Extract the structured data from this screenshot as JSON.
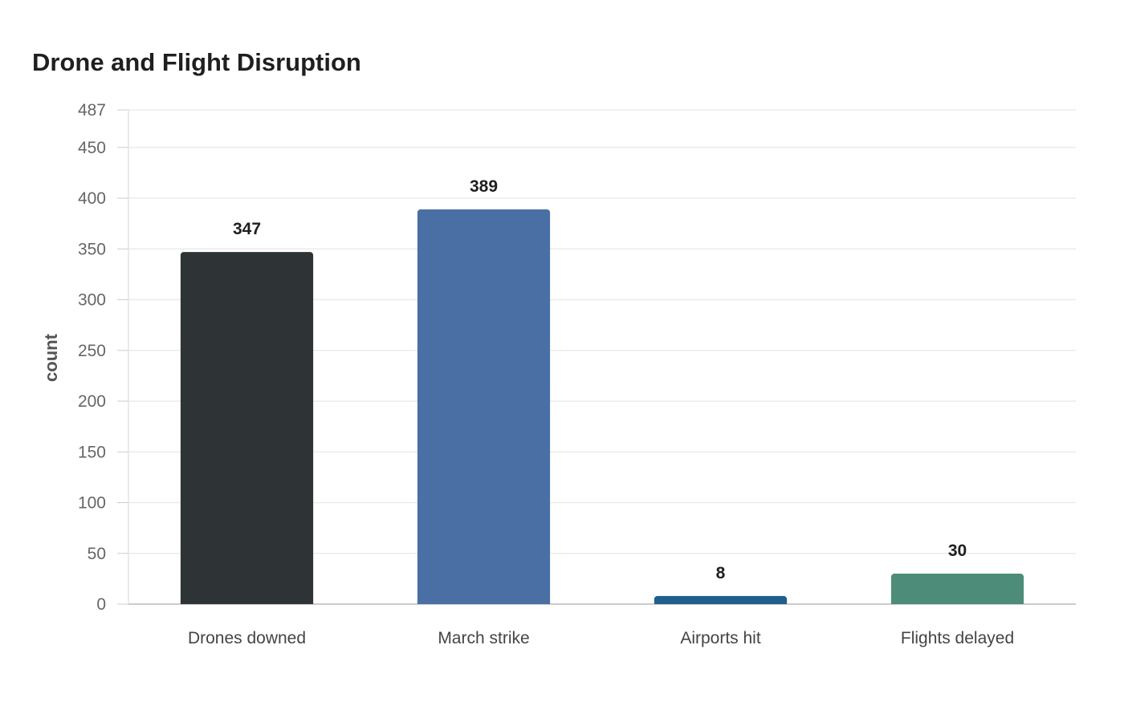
{
  "chart_data": {
    "type": "bar",
    "title": "Drone and Flight Disruption",
    "xlabel": "",
    "ylabel": "count",
    "categories": [
      "Drones downed",
      "March strike",
      "Airports hit",
      "Flights delayed"
    ],
    "values": [
      347,
      389,
      8,
      30
    ],
    "colors": [
      "#2e3436",
      "#4a6fa5",
      "#1f5f8b",
      "#4e8c7a"
    ],
    "ylim": [
      0,
      487
    ],
    "yticks": [
      0,
      50,
      100,
      150,
      200,
      250,
      300,
      350,
      400,
      450,
      487
    ],
    "grid": true,
    "legend": "none"
  }
}
